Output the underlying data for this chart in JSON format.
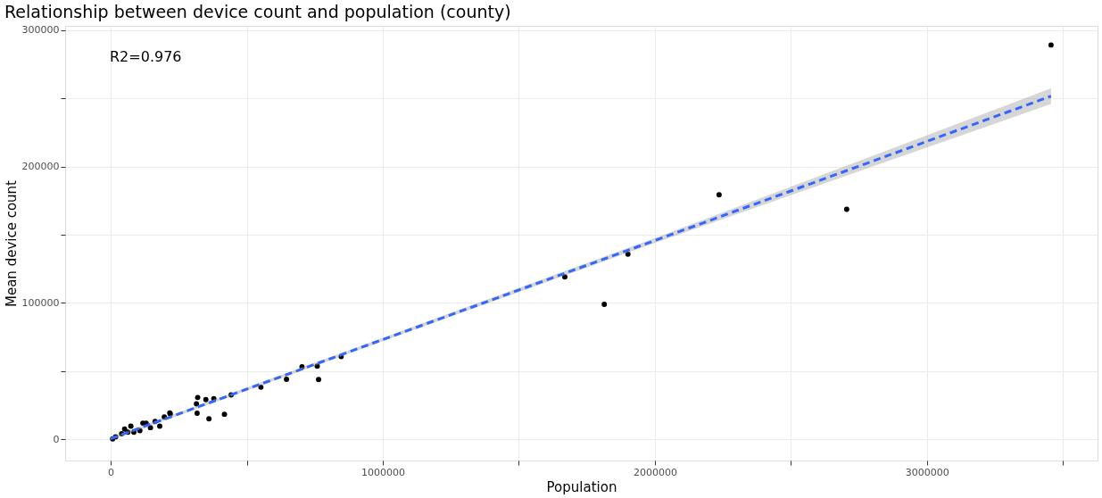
{
  "chart_data": {
    "type": "scatter",
    "title": "Relationship between device count and population (county)",
    "xlabel": "Population",
    "ylabel": "Mean device count",
    "annotations": [
      "R2=0.976"
    ],
    "series": [
      {
        "color": "#000000",
        "marker": "circle",
        "x": [
          3456000,
          2236000,
          2705000,
          1901000,
          1669000,
          1814000,
          847000,
          759000,
          703000,
          764000,
          646000,
          552000,
          442500,
          319500,
          315000,
          317500,
          349600,
          378800,
          361000,
          418000,
          217000,
          219000,
          197000,
          180000,
          163000,
          146000,
          130000,
          118000,
          107000,
          85000,
          74000,
          63000,
          51000,
          40000,
          18000,
          7000
        ],
        "values": [
          289000,
          179300,
          168600,
          135800,
          119100,
          99000,
          60700,
          53700,
          53300,
          43900,
          44100,
          38300,
          32600,
          30800,
          26100,
          19200,
          29200,
          29900,
          15200,
          18500,
          19400,
          18700,
          16500,
          9800,
          13200,
          8700,
          12000,
          12000,
          6500,
          5400,
          9800,
          5400,
          7600,
          4200,
          2000,
          500
        ]
      },
      {
        "type": "line",
        "color": "#3366ff",
        "line_style": "dashed",
        "x": [
          0,
          1000000,
          2000000,
          3456000
        ],
        "values": [
          600,
          73200,
          145800,
          251500
        ],
        "lower": [
          -400,
          72000,
          144000,
          245800
        ],
        "upper": [
          1600,
          74500,
          147600,
          257200
        ]
      }
    ],
    "xlim": [
      -167600,
      3627000
    ],
    "ylim": [
      -15400,
      303000
    ],
    "xticks": [
      0,
      {
        "value": 500000,
        "label": null
      },
      1000000,
      {
        "value": 1500000,
        "label": null
      },
      2000000,
      {
        "value": 2500000,
        "label": null
      },
      3000000,
      {
        "value": 3500000,
        "label": null
      }
    ],
    "yticks": [
      0,
      {
        "value": 50000,
        "label": null
      },
      100000,
      {
        "value": 150000,
        "label": null
      },
      200000,
      {
        "value": 250000,
        "label": null
      },
      300000
    ],
    "grid": true
  }
}
